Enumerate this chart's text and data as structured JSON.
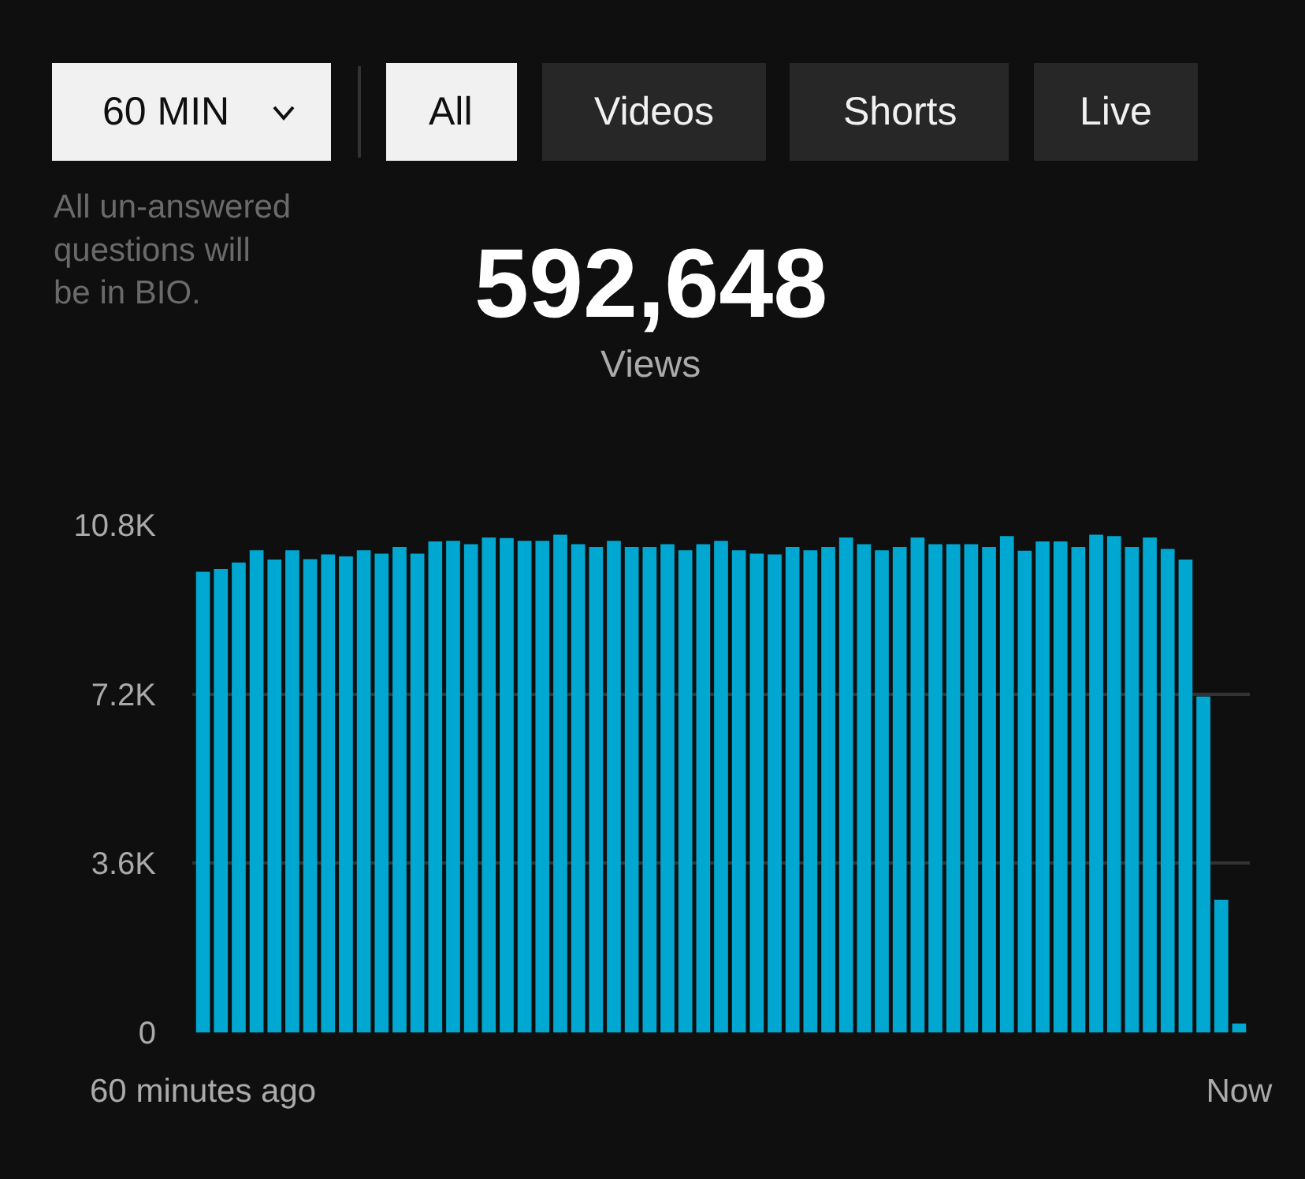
{
  "chart_data": {
    "type": "bar",
    "title": "592,648",
    "subtitle": "Views",
    "categories": [
      "60 minutes ago",
      null,
      null,
      null,
      null,
      null,
      null,
      null,
      null,
      null,
      null,
      null,
      null,
      null,
      null,
      null,
      null,
      null,
      null,
      null,
      null,
      null,
      null,
      null,
      null,
      null,
      null,
      null,
      null,
      null,
      null,
      null,
      null,
      null,
      null,
      null,
      null,
      null,
      null,
      null,
      null,
      null,
      null,
      null,
      null,
      null,
      null,
      null,
      null,
      null,
      null,
      null,
      null,
      null,
      null,
      null,
      null,
      null,
      "Now"
    ],
    "values": [
      9800,
      9860,
      10000,
      10260,
      10060,
      10260,
      10070,
      10170,
      10130,
      10260,
      10190,
      10330,
      10190,
      10450,
      10460,
      10390,
      10530,
      10520,
      10460,
      10460,
      10590,
      10390,
      10330,
      10460,
      10330,
      10330,
      10390,
      10260,
      10390,
      10460,
      10260,
      10190,
      10170,
      10330,
      10260,
      10330,
      10530,
      10390,
      10260,
      10330,
      10530,
      10390,
      10390,
      10390,
      10330,
      10560,
      10250,
      10450,
      10450,
      10330,
      10590,
      10560,
      10330,
      10530,
      10290,
      10060,
      7150,
      2820,
      190
    ],
    "color": "#00a8d1",
    "ylim": [
      0,
      10800
    ],
    "yticks": [
      0,
      {
        "value": 3600,
        "label": "3.6K"
      },
      {
        "value": 7200,
        "label": "7.2K"
      },
      {
        "value": 10800,
        "label": "10.8K"
      }
    ],
    "grid": "y",
    "annotations": [
      "60 MIN",
      "All",
      "Videos",
      "Shorts",
      "Live",
      "All un-answered questions will be in BIO."
    ]
  }
}
